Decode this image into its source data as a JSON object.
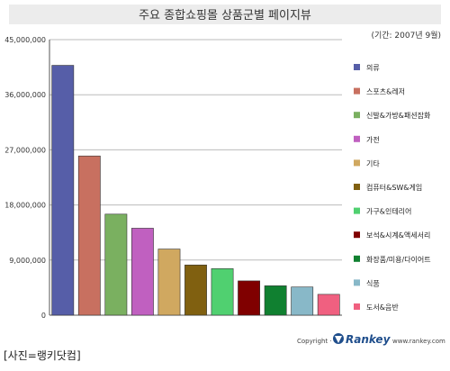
{
  "chart_data": {
    "type": "bar",
    "title": "주요 종합쇼핑몰 상품군별 페이지뷰",
    "subtitle": "(기간: 2007년 9월)",
    "xlabel": "",
    "ylabel": "",
    "ylim": [
      0,
      45000000
    ],
    "yticks": [
      0,
      9000000,
      18000000,
      27000000,
      36000000,
      45000000
    ],
    "ytick_labels": [
      "0",
      "9,000,000",
      "18,000,000",
      "27,000,000",
      "36,000,000",
      "45,000,000"
    ],
    "grid": true,
    "legend_position": "right",
    "categories": [
      "의류",
      "스포츠&레저",
      "신발&가방&패션잡화",
      "가전",
      "기타",
      "컴퓨터&SW&게임",
      "가구&인테리어",
      "보석&시계&액세서리",
      "화장품/미용/다이어트",
      "식품",
      "도서&음반"
    ],
    "values": [
      40800000,
      26000000,
      16500000,
      14200000,
      10800000,
      8200000,
      7600000,
      5600000,
      4800000,
      4600000,
      3400000
    ],
    "colors": [
      "#565ea8",
      "#c87060",
      "#7ab060",
      "#c060c0",
      "#d0a860",
      "#806010",
      "#50d070",
      "#800000",
      "#108030",
      "#88b8c8",
      "#f06080"
    ]
  },
  "footer": {
    "copyright": "Copyright ·",
    "brand": "Rankey",
    "url": "www.rankey.com"
  },
  "caption": "[사진=랭키닷컴]"
}
